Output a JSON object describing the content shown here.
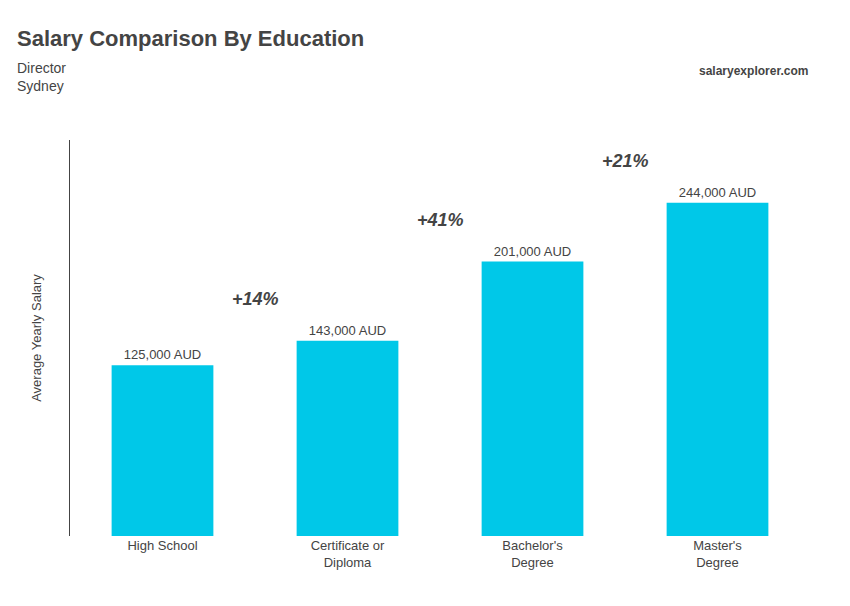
{
  "chart_data": {
    "type": "bar",
    "title": "Salary Comparison By Education",
    "subtitle": [
      "Director",
      "Sydney"
    ],
    "ylabel": "Average Yearly Salary",
    "categories": [
      "High School",
      "Certificate or\nDiploma",
      "Bachelor's\nDegree",
      "Master's\nDegree"
    ],
    "values": [
      125000,
      143000,
      201000,
      244000
    ],
    "value_labels": [
      "125,000 AUD",
      "143,000 AUD",
      "201,000 AUD",
      "244,000 AUD"
    ],
    "data_labels": true,
    "color": "#00c8e8",
    "ylim": [
      0,
      290000
    ],
    "grid": false,
    "tick_labels": "x",
    "annotations": [
      {
        "text": "+14%",
        "from": "High School",
        "to": "Certificate or\nDiploma"
      },
      {
        "text": "+41%",
        "from": "Certificate or\nDiploma",
        "to": "Bachelor's\nDegree"
      },
      {
        "text": "+21%",
        "from": "Bachelor's\nDegree",
        "to": "Master's\nDegree"
      },
      {
        "text": "salaryexplorer.com"
      }
    ]
  }
}
